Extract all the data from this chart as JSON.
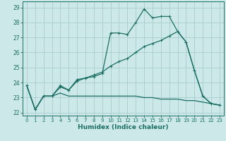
{
  "title": "",
  "xlabel": "Humidex (Indice chaleur)",
  "ylabel": "",
  "bg_color": "#cce8e8",
  "grid_color": "#aacccc",
  "line_color": "#1a6e64",
  "xlim": [
    -0.5,
    23.5
  ],
  "ylim": [
    21.8,
    29.4
  ],
  "xticks": [
    0,
    1,
    2,
    3,
    4,
    5,
    6,
    7,
    8,
    9,
    10,
    11,
    12,
    13,
    14,
    15,
    16,
    17,
    18,
    19,
    20,
    21,
    22,
    23
  ],
  "yticks": [
    22,
    23,
    24,
    25,
    26,
    27,
    28,
    29
  ],
  "line1_x": [
    0,
    1,
    2,
    3,
    4,
    5,
    6,
    7,
    8,
    9,
    10,
    11,
    12,
    13,
    14,
    15,
    16,
    17,
    18,
    19,
    20,
    21,
    22,
    23
  ],
  "line1_y": [
    23.8,
    22.2,
    23.1,
    23.1,
    23.8,
    23.5,
    24.2,
    24.3,
    24.4,
    24.6,
    27.3,
    27.3,
    27.2,
    28.0,
    28.9,
    28.3,
    28.4,
    28.4,
    27.4,
    26.7,
    24.8,
    23.1,
    22.6,
    22.5
  ],
  "line2_x": [
    0,
    1,
    2,
    3,
    4,
    5,
    6,
    7,
    8,
    9,
    10,
    11,
    12,
    13,
    14,
    15,
    16,
    17,
    18,
    19,
    20,
    21,
    22,
    23
  ],
  "line2_y": [
    23.8,
    22.2,
    23.1,
    23.1,
    23.7,
    23.5,
    24.1,
    24.3,
    24.5,
    24.7,
    25.1,
    25.4,
    25.6,
    26.0,
    26.4,
    26.6,
    26.8,
    27.1,
    27.4,
    26.7,
    24.8,
    23.1,
    22.6,
    22.5
  ],
  "line3_x": [
    0,
    1,
    2,
    3,
    4,
    5,
    6,
    7,
    8,
    9,
    10,
    11,
    12,
    13,
    14,
    15,
    16,
    17,
    18,
    19,
    20,
    21,
    22,
    23
  ],
  "line3_y": [
    23.8,
    22.2,
    23.1,
    23.1,
    23.3,
    23.1,
    23.1,
    23.1,
    23.1,
    23.1,
    23.1,
    23.1,
    23.1,
    23.1,
    23.0,
    23.0,
    22.9,
    22.9,
    22.9,
    22.8,
    22.8,
    22.7,
    22.6,
    22.5
  ]
}
